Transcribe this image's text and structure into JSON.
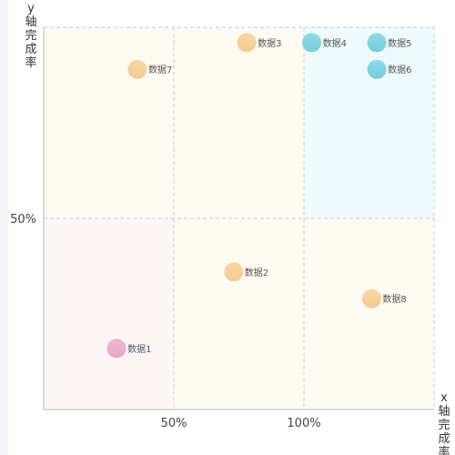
{
  "chart_data": {
    "type": "scatter",
    "title": "",
    "xlabel": "x轴完成率",
    "ylabel": "y轴完成率",
    "xlim": [
      0,
      150
    ],
    "ylim": [
      0,
      100
    ],
    "x_ticks": [
      {
        "value": 50,
        "label": "50%"
      },
      {
        "value": 100,
        "label": "100%"
      }
    ],
    "y_ticks": [
      {
        "value": 50,
        "label": "50%"
      }
    ],
    "grid": true,
    "quadrant_split": {
      "x": 100,
      "y": 50
    },
    "quadrant_colors": {
      "high_high": "#effafc",
      "low_low": "#fef5f6",
      "other": "#fffbf2"
    },
    "series": [
      {
        "points": [
          {
            "name": "数据1",
            "x": 28,
            "y": 16,
            "color": "#eaa3c4"
          },
          {
            "name": "数据2",
            "x": 73,
            "y": 36,
            "color": "#f5cb8e"
          },
          {
            "name": "数据3",
            "x": 78,
            "y": 96,
            "color": "#f5cb8e"
          },
          {
            "name": "数据4",
            "x": 103,
            "y": 96,
            "color": "#72cfdc"
          },
          {
            "name": "数据5",
            "x": 128,
            "y": 96,
            "color": "#72cfdc"
          },
          {
            "name": "数据6",
            "x": 128,
            "y": 89,
            "color": "#72cfdc"
          },
          {
            "name": "数据7",
            "x": 36,
            "y": 89,
            "color": "#f5cb8e"
          },
          {
            "name": "数据8",
            "x": 126,
            "y": 29,
            "color": "#f5cb8e"
          }
        ]
      }
    ]
  }
}
